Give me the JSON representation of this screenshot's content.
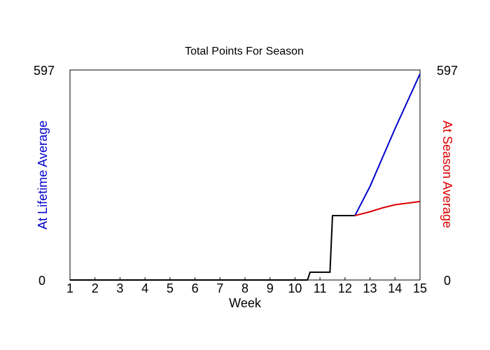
{
  "chart_data": {
    "type": "line",
    "title": "Total Points For Season",
    "xlabel": "Week",
    "ylabel_left": "At Lifetime Average",
    "ylabel_right": "At Season Average",
    "xlim": [
      1,
      15
    ],
    "ylim": [
      0,
      597
    ],
    "xticks": [
      "1",
      "2",
      "3",
      "4",
      "5",
      "6",
      "7",
      "8",
      "9",
      "10",
      "11",
      "12",
      "13",
      "14",
      "15"
    ],
    "ytick_labels": {
      "min": "0",
      "max": "597"
    },
    "grid": false,
    "legend": "none",
    "colors": {
      "actual": "#000000",
      "lifetime": "#0000cc",
      "season": "#dd0000"
    },
    "series": [
      {
        "key": "actual",
        "x": [
          1,
          10.5,
          10.6,
          11.4,
          11.5,
          12.4
        ],
        "y": [
          0,
          0,
          22,
          22,
          183,
          183
        ]
      },
      {
        "key": "lifetime",
        "x": [
          12.4,
          13,
          14,
          15
        ],
        "y": [
          183,
          266,
          430,
          586
        ]
      },
      {
        "key": "season",
        "x": [
          12.4,
          13,
          13.5,
          14,
          15
        ],
        "y": [
          183,
          194,
          205,
          214,
          223
        ]
      }
    ]
  }
}
